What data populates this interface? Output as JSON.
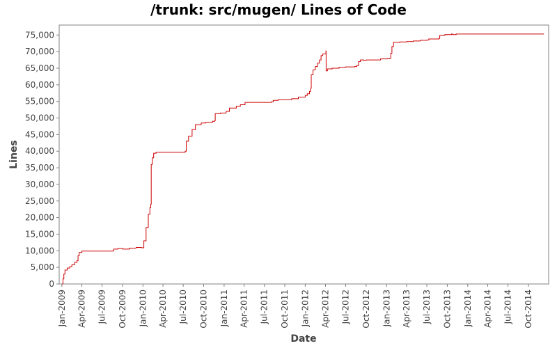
{
  "chart_data": {
    "type": "line",
    "title": "/trunk: src/mugen/ Lines of Code",
    "xlabel": "Date",
    "ylabel": "Lines",
    "ylim": [
      0,
      78000
    ],
    "xlim": [
      "2008-12-20",
      "2014-12-31"
    ],
    "y_ticks": [
      0,
      5000,
      10000,
      15000,
      20000,
      25000,
      30000,
      35000,
      40000,
      45000,
      50000,
      55000,
      60000,
      65000,
      70000,
      75000
    ],
    "y_tick_labels": [
      "0",
      "5,000",
      "10,000",
      "15,000",
      "20,000",
      "25,000",
      "30,000",
      "35,000",
      "40,000",
      "45,000",
      "50,000",
      "55,000",
      "60,000",
      "65,000",
      "70,000",
      "75,000"
    ],
    "x_ticks": [
      "2009-01-01",
      "2009-04-01",
      "2009-07-01",
      "2009-10-01",
      "2010-01-01",
      "2010-04-01",
      "2010-07-01",
      "2010-10-01",
      "2011-01-01",
      "2011-04-01",
      "2011-07-01",
      "2011-10-01",
      "2012-01-01",
      "2012-04-01",
      "2012-07-01",
      "2012-10-01",
      "2013-01-01",
      "2013-04-01",
      "2013-07-01",
      "2013-10-01",
      "2014-01-01",
      "2014-04-01",
      "2014-07-01",
      "2014-10-01"
    ],
    "x_tick_labels": [
      "Jan-2009",
      "Apr-2009",
      "Jul-2009",
      "Oct-2009",
      "Jan-2010",
      "Apr-2010",
      "Jul-2010",
      "Oct-2010",
      "Jan-2011",
      "Apr-2011",
      "Jul-2011",
      "Oct-2011",
      "Jan-2012",
      "Apr-2012",
      "Jul-2012",
      "Oct-2012",
      "Jan-2013",
      "Apr-2013",
      "Jul-2013",
      "Oct-2013",
      "Jan-2014",
      "Apr-2014",
      "Jul-2014",
      "Oct-2014"
    ],
    "grid": false,
    "line_color": "#cc0000",
    "series": [
      {
        "points": [
          [
            "2009-01-02",
            0
          ],
          [
            "2009-01-06",
            1500
          ],
          [
            "2009-01-10",
            3000
          ],
          [
            "2009-01-15",
            4200
          ],
          [
            "2009-01-25",
            4800
          ],
          [
            "2009-02-05",
            5200
          ],
          [
            "2009-02-15",
            5800
          ],
          [
            "2009-02-28",
            6500
          ],
          [
            "2009-03-10",
            7000
          ],
          [
            "2009-03-15",
            8500
          ],
          [
            "2009-03-20",
            9500
          ],
          [
            "2009-04-01",
            9900
          ],
          [
            "2009-06-30",
            9900
          ],
          [
            "2009-08-20",
            9900
          ],
          [
            "2009-08-22",
            10500
          ],
          [
            "2009-09-10",
            10700
          ],
          [
            "2009-10-01",
            10500
          ],
          [
            "2009-11-01",
            10800
          ],
          [
            "2009-12-01",
            11000
          ],
          [
            "2009-12-25",
            10900
          ],
          [
            "2010-01-05",
            13000
          ],
          [
            "2010-01-15",
            17000
          ],
          [
            "2010-01-25",
            21000
          ],
          [
            "2010-02-01",
            23000
          ],
          [
            "2010-02-05",
            24000
          ],
          [
            "2010-02-07",
            36000
          ],
          [
            "2010-02-12",
            38000
          ],
          [
            "2010-02-18",
            39400
          ],
          [
            "2010-03-01",
            39700
          ],
          [
            "2010-06-01",
            39700
          ],
          [
            "2010-07-01",
            39700
          ],
          [
            "2010-07-10",
            40000
          ],
          [
            "2010-07-15",
            43000
          ],
          [
            "2010-07-25",
            44500
          ],
          [
            "2010-08-10",
            46500
          ],
          [
            "2010-08-25",
            48000
          ],
          [
            "2010-09-20",
            48500
          ],
          [
            "2010-10-10",
            48700
          ],
          [
            "2010-11-10",
            49000
          ],
          [
            "2010-11-20",
            49200
          ],
          [
            "2010-11-22",
            51300
          ],
          [
            "2010-12-15",
            51500
          ],
          [
            "2011-01-10",
            52000
          ],
          [
            "2011-01-25",
            53000
          ],
          [
            "2011-02-25",
            53500
          ],
          [
            "2011-03-15",
            54000
          ],
          [
            "2011-04-05",
            54700
          ],
          [
            "2011-06-15",
            54700
          ],
          [
            "2011-08-01",
            54900
          ],
          [
            "2011-08-10",
            55300
          ],
          [
            "2011-09-01",
            55500
          ],
          [
            "2011-10-01",
            55500
          ],
          [
            "2011-11-01",
            55800
          ],
          [
            "2011-12-01",
            56300
          ],
          [
            "2012-01-01",
            56800
          ],
          [
            "2012-01-10",
            57300
          ],
          [
            "2012-01-20",
            58000
          ],
          [
            "2012-01-25",
            59000
          ],
          [
            "2012-01-28",
            63000
          ],
          [
            "2012-02-05",
            64500
          ],
          [
            "2012-02-15",
            65500
          ],
          [
            "2012-02-25",
            66500
          ],
          [
            "2012-03-05",
            67500
          ],
          [
            "2012-03-12",
            68800
          ],
          [
            "2012-03-20",
            69300
          ],
          [
            "2012-04-01",
            69300
          ],
          [
            "2012-04-03",
            70200
          ],
          [
            "2012-04-04",
            64200
          ],
          [
            "2012-04-10",
            64800
          ],
          [
            "2012-05-01",
            65000
          ],
          [
            "2012-06-01",
            65300
          ],
          [
            "2012-07-01",
            65400
          ],
          [
            "2012-08-10",
            65500
          ],
          [
            "2012-08-20",
            65800
          ],
          [
            "2012-08-28",
            67000
          ],
          [
            "2012-09-05",
            67500
          ],
          [
            "2012-09-20",
            67400
          ],
          [
            "2012-10-01",
            67500
          ],
          [
            "2012-12-01",
            67500
          ],
          [
            "2012-12-05",
            67800
          ],
          [
            "2013-01-05",
            67900
          ],
          [
            "2013-01-15",
            68000
          ],
          [
            "2013-01-20",
            69500
          ],
          [
            "2013-01-25",
            71500
          ],
          [
            "2013-02-01",
            72800
          ],
          [
            "2013-03-01",
            72900
          ],
          [
            "2013-04-01",
            73000
          ],
          [
            "2013-05-01",
            73200
          ],
          [
            "2013-06-01",
            73400
          ],
          [
            "2013-07-01",
            73500
          ],
          [
            "2013-07-10",
            73800
          ],
          [
            "2013-08-25",
            74000
          ],
          [
            "2013-08-28",
            74900
          ],
          [
            "2013-09-20",
            75100
          ],
          [
            "2013-10-20",
            75300
          ],
          [
            "2013-10-25",
            75100
          ],
          [
            "2013-11-10",
            75300
          ],
          [
            "2014-01-01",
            75300
          ],
          [
            "2014-06-01",
            75300
          ],
          [
            "2014-12-10",
            75300
          ]
        ]
      }
    ]
  }
}
